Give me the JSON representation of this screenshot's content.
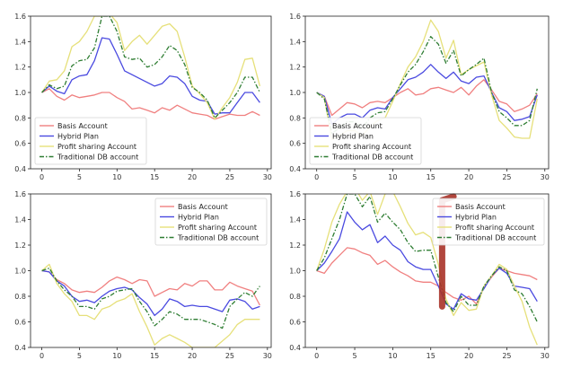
{
  "colors": {
    "basis": "#f08080",
    "hybrid": "#4a4ae0",
    "profit": "#e6e07a",
    "traditional": "#2e7d32",
    "marker": "#a83228"
  },
  "chart_data": [
    {
      "type": "line",
      "panel": "top-left",
      "x": [
        0,
        1,
        2,
        3,
        4,
        5,
        6,
        7,
        8,
        9,
        10,
        11,
        12,
        13,
        14,
        15,
        16,
        17,
        18,
        19,
        20,
        21,
        22,
        23,
        24,
        25,
        26,
        27,
        28,
        29
      ],
      "xlim": [
        -1.5,
        30.5
      ],
      "ylim": [
        0.4,
        1.6
      ],
      "xticks": [
        "0",
        "5",
        "10",
        "15",
        "20",
        "25",
        "30"
      ],
      "yticks": [
        "0.4",
        "0.6",
        "0.8",
        "1.0",
        "1.2",
        "1.4",
        "1.6"
      ],
      "legend": "lower-left",
      "grid": false,
      "series": [
        {
          "name": "Basis Account",
          "key": "basis",
          "dash": "",
          "values": [
            1.0,
            1.03,
            0.97,
            0.94,
            0.98,
            0.96,
            0.97,
            0.98,
            1.0,
            1.0,
            0.96,
            0.93,
            0.87,
            0.88,
            0.86,
            0.84,
            0.88,
            0.86,
            0.9,
            0.87,
            0.84,
            0.83,
            0.82,
            0.79,
            0.81,
            0.83,
            0.82,
            0.82,
            0.85,
            0.82
          ]
        },
        {
          "name": "Hybrid Plan",
          "key": "hybrid",
          "dash": "",
          "values": [
            1.0,
            1.05,
            1.01,
            0.99,
            1.1,
            1.13,
            1.14,
            1.25,
            1.43,
            1.42,
            1.3,
            1.17,
            1.14,
            1.11,
            1.08,
            1.05,
            1.07,
            1.13,
            1.12,
            1.07,
            0.97,
            0.94,
            0.93,
            0.83,
            0.84,
            0.84,
            0.92,
            1.0,
            1.0,
            0.92
          ]
        },
        {
          "name": "Profit sharing Account",
          "key": "profit",
          "dash": "",
          "values": [
            1.0,
            1.09,
            1.1,
            1.17,
            1.36,
            1.4,
            1.48,
            1.6,
            1.6,
            1.62,
            1.55,
            1.33,
            1.4,
            1.45,
            1.38,
            1.45,
            1.52,
            1.54,
            1.48,
            1.28,
            1.05,
            0.99,
            0.92,
            0.79,
            0.88,
            0.96,
            1.08,
            1.26,
            1.27,
            1.05
          ]
        },
        {
          "name": "Traditional DB account",
          "key": "traditional",
          "dash": "5,2,1.5,2",
          "values": [
            1.0,
            1.06,
            1.03,
            1.05,
            1.21,
            1.25,
            1.26,
            1.35,
            1.6,
            1.6,
            1.48,
            1.28,
            1.26,
            1.27,
            1.2,
            1.22,
            1.28,
            1.37,
            1.33,
            1.22,
            1.04,
            1.0,
            0.94,
            0.8,
            0.86,
            0.92,
            1.0,
            1.12,
            1.12,
            1.0
          ]
        }
      ]
    },
    {
      "type": "line",
      "panel": "top-right",
      "x": [
        0,
        1,
        2,
        3,
        4,
        5,
        6,
        7,
        8,
        9,
        10,
        11,
        12,
        13,
        14,
        15,
        16,
        17,
        18,
        19,
        20,
        21,
        22,
        23,
        24,
        25,
        26,
        27,
        28,
        29
      ],
      "xlim": [
        -1.5,
        30.5
      ],
      "ylim": [
        0.4,
        1.6
      ],
      "xticks": [
        "0",
        "5",
        "10",
        "15",
        "20",
        "25",
        "30"
      ],
      "yticks": [
        "0.4",
        "0.6",
        "0.8",
        "1.0",
        "1.2",
        "1.4",
        "1.6"
      ],
      "legend": "lower-left",
      "grid": false,
      "series": [
        {
          "name": "Basis Account",
          "key": "basis",
          "dash": "",
          "values": [
            1.0,
            0.97,
            0.82,
            0.87,
            0.92,
            0.91,
            0.88,
            0.92,
            0.93,
            0.92,
            0.96,
            1.0,
            1.03,
            0.98,
            0.99,
            1.03,
            1.04,
            1.02,
            1.0,
            1.04,
            0.98,
            1.05,
            1.1,
            1.02,
            0.93,
            0.91,
            0.85,
            0.87,
            0.9,
            0.99
          ]
        },
        {
          "name": "Hybrid Plan",
          "key": "hybrid",
          "dash": "",
          "values": [
            1.0,
            0.97,
            0.75,
            0.8,
            0.83,
            0.83,
            0.8,
            0.86,
            0.88,
            0.87,
            0.96,
            1.03,
            1.1,
            1.12,
            1.16,
            1.22,
            1.16,
            1.11,
            1.16,
            1.09,
            1.07,
            1.12,
            1.13,
            1.0,
            0.88,
            0.85,
            0.78,
            0.79,
            0.81,
            0.98
          ]
        },
        {
          "name": "Profit sharing Account",
          "key": "profit",
          "dash": "",
          "values": [
            1.0,
            0.96,
            0.63,
            0.66,
            0.7,
            0.7,
            0.66,
            0.73,
            0.78,
            0.8,
            0.93,
            1.07,
            1.2,
            1.28,
            1.4,
            1.57,
            1.48,
            1.27,
            1.41,
            1.14,
            1.18,
            1.21,
            1.24,
            0.98,
            0.78,
            0.72,
            0.65,
            0.64,
            0.64,
            0.95
          ]
        },
        {
          "name": "Traditional DB account",
          "key": "traditional",
          "dash": "5,2,1.5,2",
          "values": [
            1.0,
            0.95,
            0.68,
            0.72,
            0.77,
            0.77,
            0.72,
            0.8,
            0.84,
            0.85,
            0.95,
            1.06,
            1.16,
            1.22,
            1.32,
            1.44,
            1.38,
            1.23,
            1.33,
            1.13,
            1.18,
            1.22,
            1.27,
            1.0,
            0.85,
            0.8,
            0.74,
            0.74,
            0.78,
            1.03
          ]
        }
      ]
    },
    {
      "type": "line",
      "panel": "bottom-left",
      "x": [
        0,
        1,
        2,
        3,
        4,
        5,
        6,
        7,
        8,
        9,
        10,
        11,
        12,
        13,
        14,
        15,
        16,
        17,
        18,
        19,
        20,
        21,
        22,
        23,
        24,
        25,
        26,
        27,
        28,
        29
      ],
      "xlim": [
        -1.5,
        30.5
      ],
      "ylim": [
        0.4,
        1.6
      ],
      "xticks": [
        "0",
        "5",
        "10",
        "15",
        "20",
        "25",
        "30"
      ],
      "yticks": [
        "0.4",
        "0.6",
        "0.8",
        "1.0",
        "1.2",
        "1.4",
        "1.6"
      ],
      "legend": "upper-right",
      "grid": false,
      "series": [
        {
          "name": "Basis Account",
          "key": "basis",
          "dash": "",
          "values": [
            1.0,
            0.99,
            0.93,
            0.9,
            0.85,
            0.83,
            0.84,
            0.83,
            0.87,
            0.92,
            0.95,
            0.93,
            0.9,
            0.93,
            0.92,
            0.8,
            0.83,
            0.86,
            0.85,
            0.9,
            0.88,
            0.92,
            0.92,
            0.85,
            0.85,
            0.91,
            0.88,
            0.86,
            0.84,
            0.73
          ]
        },
        {
          "name": "Hybrid Plan",
          "key": "hybrid",
          "dash": "",
          "values": [
            1.0,
            0.99,
            0.92,
            0.88,
            0.8,
            0.76,
            0.77,
            0.75,
            0.8,
            0.84,
            0.86,
            0.87,
            0.85,
            0.79,
            0.74,
            0.65,
            0.7,
            0.78,
            0.76,
            0.72,
            0.73,
            0.72,
            0.72,
            0.7,
            0.68,
            0.77,
            0.78,
            0.76,
            0.7,
            0.72
          ]
        },
        {
          "name": "Profit sharing Account",
          "key": "profit",
          "dash": "",
          "values": [
            1.0,
            1.05,
            0.9,
            0.82,
            0.76,
            0.65,
            0.65,
            0.62,
            0.7,
            0.72,
            0.76,
            0.78,
            0.82,
            0.68,
            0.56,
            0.42,
            0.47,
            0.5,
            0.47,
            0.44,
            0.4,
            0.4,
            0.4,
            0.4,
            0.45,
            0.5,
            0.58,
            0.62,
            0.62,
            0.62
          ]
        },
        {
          "name": "Traditional DB account",
          "key": "traditional",
          "dash": "5,2,1.5,2",
          "values": [
            1.0,
            1.02,
            0.92,
            0.85,
            0.8,
            0.72,
            0.72,
            0.7,
            0.78,
            0.8,
            0.84,
            0.85,
            0.86,
            0.76,
            0.68,
            0.57,
            0.62,
            0.68,
            0.66,
            0.62,
            0.62,
            0.62,
            0.6,
            0.58,
            0.55,
            0.72,
            0.78,
            0.83,
            0.8,
            0.88
          ]
        }
      ]
    },
    {
      "type": "line",
      "panel": "bottom-right",
      "x": [
        0,
        1,
        2,
        3,
        4,
        5,
        6,
        7,
        8,
        9,
        10,
        11,
        12,
        13,
        14,
        15,
        16,
        17,
        18,
        19,
        20,
        21,
        22,
        23,
        24,
        25,
        26,
        27,
        28,
        29
      ],
      "xlim": [
        -1.5,
        30.5
      ],
      "ylim": [
        0.4,
        1.6
      ],
      "xticks": [
        "0",
        "5",
        "10",
        "15",
        "20",
        "25",
        "30"
      ],
      "yticks": [
        "0.4",
        "0.6",
        "0.8",
        "1.0",
        "1.2",
        "1.4",
        "1.6"
      ],
      "legend": "upper-right",
      "grid": false,
      "series": [
        {
          "name": "Basis Account",
          "key": "basis",
          "dash": "",
          "values": [
            1.0,
            0.98,
            1.06,
            1.12,
            1.18,
            1.17,
            1.14,
            1.12,
            1.05,
            1.08,
            1.03,
            0.99,
            0.96,
            0.92,
            0.91,
            0.91,
            0.88,
            0.83,
            0.79,
            0.77,
            0.8,
            0.74,
            0.87,
            0.95,
            1.02,
            1.0,
            0.98,
            0.97,
            0.96,
            0.93
          ]
        },
        {
          "name": "Hybrid Plan",
          "key": "hybrid",
          "dash": "",
          "values": [
            1.0,
            1.06,
            1.15,
            1.25,
            1.46,
            1.38,
            1.32,
            1.36,
            1.22,
            1.27,
            1.2,
            1.16,
            1.07,
            1.03,
            1.01,
            1.01,
            0.88,
            0.74,
            0.7,
            0.82,
            0.78,
            0.77,
            0.86,
            0.96,
            1.02,
            0.98,
            0.88,
            0.87,
            0.86,
            0.76
          ]
        },
        {
          "name": "Profit sharing Account",
          "key": "profit",
          "dash": "",
          "values": [
            1.0,
            1.17,
            1.38,
            1.52,
            1.62,
            1.65,
            1.55,
            1.62,
            1.44,
            1.6,
            1.62,
            1.5,
            1.37,
            1.28,
            1.3,
            1.26,
            1.05,
            0.78,
            0.65,
            0.75,
            0.69,
            0.7,
            0.88,
            0.96,
            1.05,
            1.01,
            0.88,
            0.76,
            0.56,
            0.42
          ]
        },
        {
          "name": "Traditional DB account",
          "key": "traditional",
          "dash": "5,2,1.5,2",
          "values": [
            1.0,
            1.1,
            1.25,
            1.4,
            1.6,
            1.6,
            1.5,
            1.58,
            1.38,
            1.45,
            1.38,
            1.32,
            1.22,
            1.15,
            1.16,
            1.16,
            0.95,
            0.75,
            0.68,
            0.8,
            0.73,
            0.73,
            0.88,
            0.96,
            1.03,
            1.0,
            0.85,
            0.82,
            0.72,
            0.6
          ]
        }
      ],
      "annotation": {
        "type": "hand-drawn marker",
        "x": [
          16.5,
          16.5,
          18
        ],
        "y": [
          0.72,
          1.55,
          1.58
        ]
      }
    }
  ]
}
